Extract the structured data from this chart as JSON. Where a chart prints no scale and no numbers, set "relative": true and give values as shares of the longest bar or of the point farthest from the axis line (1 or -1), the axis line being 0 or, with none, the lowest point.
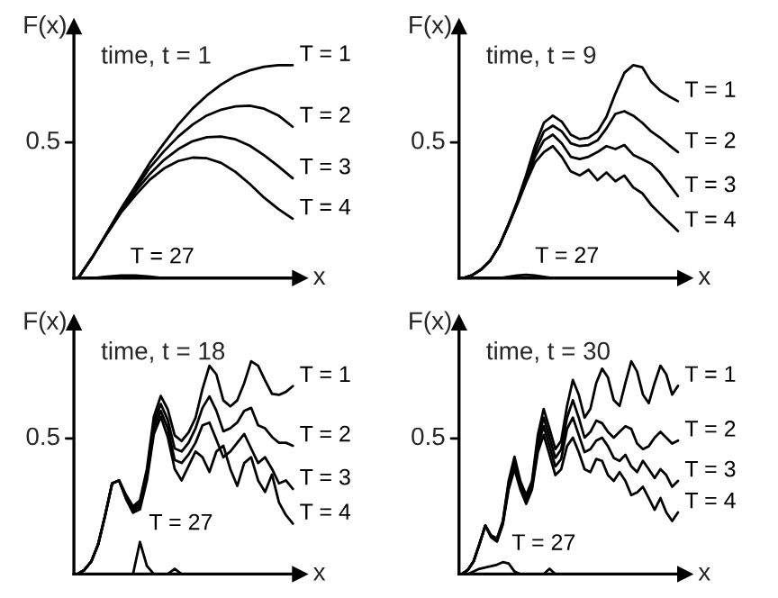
{
  "chart_data": [
    {
      "type": "line",
      "relative": true,
      "title": "time, t = 1",
      "ylabel": "F(x)",
      "xlabel": "x",
      "annotations": [
        "0.5"
      ],
      "categories": [
        null,
        null,
        null,
        null,
        null,
        null,
        null,
        null,
        null,
        null,
        null,
        null,
        null,
        null,
        null,
        null
      ],
      "grid": false,
      "legend": false,
      "series": [
        {
          "name": "T = 1",
          "color": "#000000",
          "values": [
            0,
            0.099,
            0.212,
            0.327,
            0.432,
            0.541,
            0.633,
            0.721,
            0.796,
            0.858,
            0.909,
            0.95,
            0.976,
            0.993,
            1,
            1
          ]
        },
        {
          "name": "T = 2",
          "color": "#000000",
          "values": [
            0,
            0.099,
            0.212,
            0.322,
            0.419,
            0.518,
            0.596,
            0.665,
            0.721,
            0.764,
            0.791,
            0.807,
            0.81,
            0.796,
            0.764,
            0.711
          ]
        },
        {
          "name": "T = 3",
          "color": "#000000",
          "values": [
            0,
            0.099,
            0.209,
            0.314,
            0.407,
            0.488,
            0.555,
            0.606,
            0.643,
            0.662,
            0.665,
            0.652,
            0.622,
            0.577,
            0.525,
            0.469
          ]
        },
        {
          "name": "T = 4",
          "color": "#000000",
          "values": [
            0,
            0.099,
            0.206,
            0.308,
            0.389,
            0.462,
            0.515,
            0.55,
            0.566,
            0.563,
            0.541,
            0.499,
            0.442,
            0.378,
            0.324,
            0.279
          ]
        },
        {
          "name": "T = 27",
          "color": "#000000",
          "values": [
            0,
            0,
            0.007,
            0.012,
            0.012,
            0.007,
            0,
            0,
            0,
            0,
            0,
            0,
            0,
            0,
            0,
            0
          ]
        }
      ]
    },
    {
      "type": "line",
      "relative": true,
      "title": "time, t = 9",
      "ylabel": "F(x)",
      "xlabel": "x",
      "annotations": [
        "0.5"
      ],
      "categories": [
        null,
        null,
        null,
        null,
        null,
        null,
        null,
        null,
        null,
        null,
        null,
        null,
        null,
        null,
        null,
        null,
        null,
        null,
        null,
        null,
        null,
        null,
        null,
        null,
        null
      ],
      "grid": false,
      "legend": false,
      "series": [
        {
          "name": "T = 1",
          "color": "#000000",
          "values": [
            0,
            0.014,
            0.041,
            0.083,
            0.151,
            0.248,
            0.358,
            0.482,
            0.62,
            0.73,
            0.763,
            0.735,
            0.674,
            0.653,
            0.66,
            0.689,
            0.757,
            0.867,
            0.964,
            1,
            0.991,
            0.922,
            0.881,
            0.854,
            0.831
          ]
        },
        {
          "name": "T = 2",
          "color": "#000000",
          "values": [
            0,
            0.014,
            0.041,
            0.083,
            0.151,
            0.248,
            0.352,
            0.468,
            0.592,
            0.689,
            0.716,
            0.689,
            0.633,
            0.62,
            0.625,
            0.647,
            0.703,
            0.771,
            0.784,
            0.763,
            0.73,
            0.689,
            0.66,
            0.625,
            0.592
          ]
        },
        {
          "name": "T = 3",
          "color": "#000000",
          "values": [
            0,
            0.014,
            0.041,
            0.083,
            0.151,
            0.248,
            0.349,
            0.46,
            0.57,
            0.647,
            0.674,
            0.633,
            0.57,
            0.559,
            0.57,
            0.592,
            0.62,
            0.606,
            0.625,
            0.579,
            0.559,
            0.537,
            0.496,
            0.441,
            0.385
          ]
        },
        {
          "name": "T = 4",
          "color": "#000000",
          "values": [
            0,
            0.014,
            0.041,
            0.083,
            0.151,
            0.245,
            0.344,
            0.449,
            0.543,
            0.592,
            0.62,
            0.57,
            0.501,
            0.482,
            0.509,
            0.46,
            0.496,
            0.455,
            0.482,
            0.426,
            0.399,
            0.344,
            0.302,
            0.261,
            0.221
          ]
        },
        {
          "name": "T = 27",
          "color": "#000000",
          "values": [
            0,
            0,
            0,
            0,
            0,
            0.006,
            0.012,
            0.015,
            0.012,
            0.006,
            0,
            0,
            0,
            0,
            0,
            0,
            0,
            0,
            0,
            0,
            0,
            0,
            0,
            0,
            0
          ]
        }
      ]
    },
    {
      "type": "line",
      "relative": true,
      "title": "time, t = 18",
      "ylabel": "F(x)",
      "xlabel": "x",
      "annotations": [
        "0.5"
      ],
      "categories": [
        null,
        null,
        null,
        null,
        null,
        null,
        null,
        null,
        null,
        null,
        null,
        null,
        null,
        null,
        null,
        null,
        null,
        null,
        null,
        null,
        null,
        null,
        null,
        null,
        null,
        null,
        null,
        null,
        null,
        null,
        null,
        null
      ],
      "grid": false,
      "legend": false,
      "series": [
        {
          "name": "T = 1",
          "color": "#000000",
          "values": [
            0,
            0.019,
            0.059,
            0.141,
            0.277,
            0.426,
            0.44,
            0.372,
            0.318,
            0.346,
            0.494,
            0.739,
            0.837,
            0.774,
            0.652,
            0.625,
            0.666,
            0.734,
            0.87,
            0.979,
            0.938,
            0.816,
            0.788,
            0.816,
            0.897,
            1,
            0.979,
            0.91,
            0.847,
            0.842,
            0.856,
            0.883
          ]
        },
        {
          "name": "T = 2",
          "color": "#000000",
          "values": [
            0,
            0.019,
            0.059,
            0.141,
            0.277,
            0.426,
            0.44,
            0.364,
            0.31,
            0.332,
            0.473,
            0.712,
            0.799,
            0.725,
            0.59,
            0.576,
            0.617,
            0.685,
            0.781,
            0.835,
            0.767,
            0.671,
            0.685,
            0.712,
            0.767,
            0.781,
            0.699,
            0.685,
            0.644,
            0.617,
            0.617,
            0.603
          ]
        },
        {
          "name": "T = 3",
          "color": "#000000",
          "values": [
            0,
            0.019,
            0.059,
            0.141,
            0.277,
            0.426,
            0.44,
            0.358,
            0.299,
            0.318,
            0.454,
            0.685,
            0.767,
            0.685,
            0.536,
            0.522,
            0.562,
            0.617,
            0.699,
            0.712,
            0.631,
            0.549,
            0.576,
            0.617,
            0.658,
            0.59,
            0.522,
            0.549,
            0.494,
            0.426,
            0.44,
            0.4
          ]
        },
        {
          "name": "T = 4",
          "color": "#000000",
          "values": [
            0,
            0.019,
            0.059,
            0.141,
            0.277,
            0.426,
            0.44,
            0.353,
            0.288,
            0.304,
            0.44,
            0.658,
            0.739,
            0.644,
            0.494,
            0.44,
            0.508,
            0.576,
            0.549,
            0.48,
            0.576,
            0.603,
            0.494,
            0.414,
            0.522,
            0.549,
            0.44,
            0.386,
            0.468,
            0.337,
            0.277,
            0.237
          ]
        },
        {
          "name": "T = 27",
          "color": "#000000",
          "values": [
            0,
            0,
            0,
            0,
            0,
            0,
            0,
            0,
            0,
            0.151,
            0.038,
            0,
            0,
            0,
            0.025,
            0,
            0,
            0,
            0,
            0,
            0,
            0,
            0,
            0,
            0,
            0,
            0,
            0,
            0,
            0,
            0,
            0
          ]
        }
      ]
    },
    {
      "type": "line",
      "relative": true,
      "title": "time, t = 30",
      "ylabel": "F(x)",
      "xlabel": "x",
      "annotations": [
        "0.5"
      ],
      "categories": [
        null,
        null,
        null,
        null,
        null,
        null,
        null,
        null,
        null,
        null,
        null,
        null,
        null,
        null,
        null,
        null,
        null,
        null,
        null,
        null,
        null,
        null,
        null,
        null,
        null,
        null,
        null,
        null,
        null,
        null,
        null,
        null,
        null,
        null,
        null,
        null,
        null,
        null
      ],
      "grid": false,
      "legend": false,
      "series": [
        {
          "name": "T = 1",
          "color": "#000000",
          "values": [
            0,
            0.019,
            0.06,
            0.141,
            0.228,
            0.182,
            0.168,
            0.249,
            0.438,
            0.551,
            0.438,
            0.371,
            0.438,
            0.654,
            0.776,
            0.682,
            0.587,
            0.627,
            0.79,
            0.912,
            0.843,
            0.735,
            0.776,
            0.898,
            0.965,
            0.924,
            0.817,
            0.79,
            0.898,
            1,
            0.951,
            0.843,
            0.803,
            0.898,
            0.979,
            0.938,
            0.843,
            0.884
          ]
        },
        {
          "name": "T = 2",
          "color": "#000000",
          "values": [
            0,
            0.019,
            0.06,
            0.141,
            0.228,
            0.179,
            0.162,
            0.244,
            0.424,
            0.53,
            0.424,
            0.357,
            0.424,
            0.627,
            0.735,
            0.641,
            0.546,
            0.587,
            0.735,
            0.817,
            0.735,
            0.641,
            0.668,
            0.721,
            0.709,
            0.668,
            0.641,
            0.668,
            0.695,
            0.682,
            0.613,
            0.587,
            0.601,
            0.641,
            0.668,
            0.641,
            0.613,
            0.627
          ]
        },
        {
          "name": "T = 3",
          "color": "#000000",
          "values": [
            0,
            0.019,
            0.06,
            0.141,
            0.228,
            0.175,
            0.157,
            0.238,
            0.41,
            0.519,
            0.41,
            0.343,
            0.41,
            0.601,
            0.695,
            0.601,
            0.506,
            0.541,
            0.682,
            0.735,
            0.654,
            0.573,
            0.587,
            0.627,
            0.641,
            0.601,
            0.546,
            0.532,
            0.56,
            0.506,
            0.479,
            0.532,
            0.493,
            0.451,
            0.493,
            0.465,
            0.41,
            0.438
          ]
        },
        {
          "name": "T = 4",
          "color": "#000000",
          "values": [
            0,
            0.019,
            0.06,
            0.141,
            0.228,
            0.173,
            0.152,
            0.233,
            0.398,
            0.493,
            0.398,
            0.33,
            0.398,
            0.573,
            0.654,
            0.56,
            0.465,
            0.493,
            0.601,
            0.641,
            0.573,
            0.493,
            0.479,
            0.541,
            0.532,
            0.465,
            0.438,
            0.479,
            0.438,
            0.371,
            0.384,
            0.41,
            0.357,
            0.302,
            0.357,
            0.29,
            0.249,
            0.29
          ]
        },
        {
          "name": "T = 27",
          "color": "#000000",
          "values": [
            0,
            0,
            0.012,
            0.025,
            0.031,
            0.037,
            0.044,
            0.056,
            0.05,
            0.012,
            0,
            0,
            0,
            0,
            0,
            0.025,
            0,
            0,
            0,
            0,
            0,
            0,
            0,
            0,
            0,
            0,
            0,
            0,
            0,
            0,
            0,
            0,
            0,
            0,
            0,
            0,
            0,
            0
          ]
        }
      ]
    }
  ]
}
